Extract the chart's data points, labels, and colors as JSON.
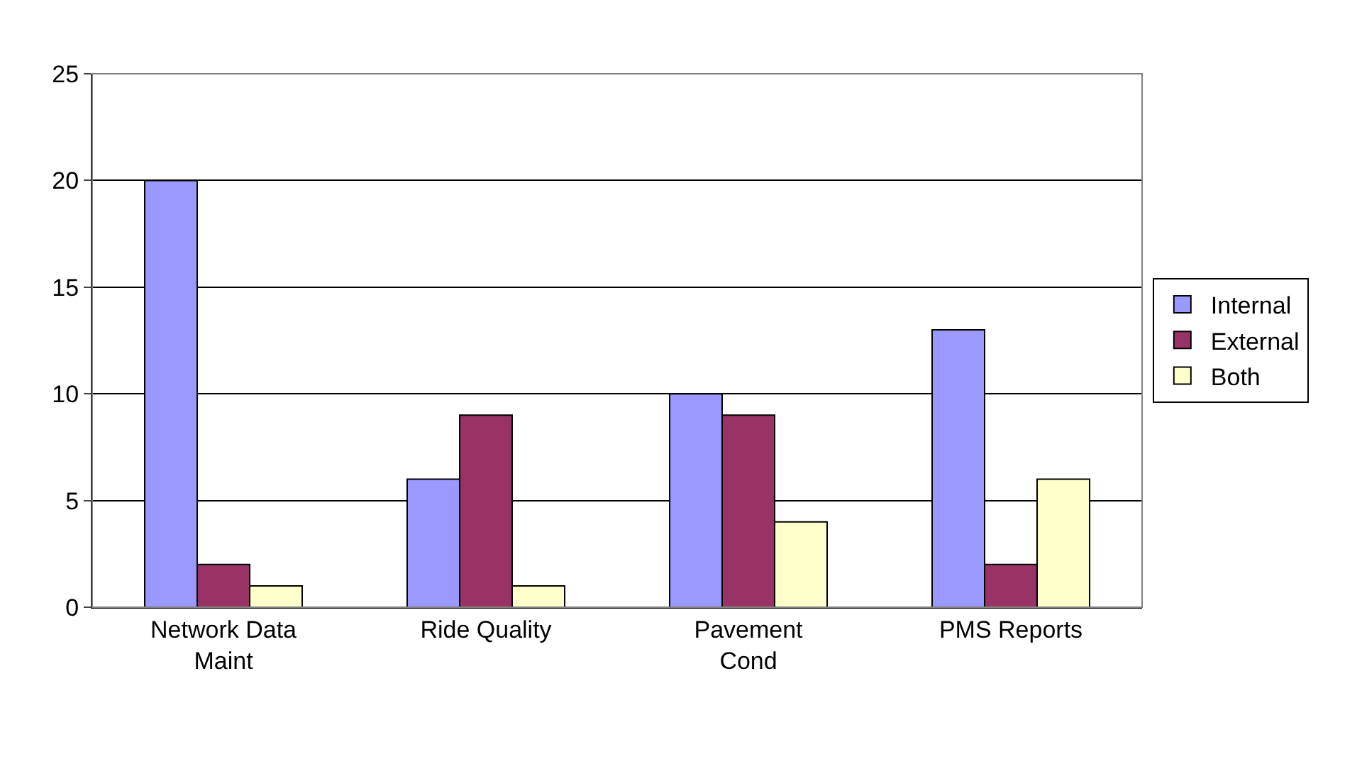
{
  "chart_data": {
    "type": "bar",
    "categories": [
      "Network Data Maint",
      "Ride Quality",
      "Pavement Cond",
      "PMS Reports"
    ],
    "series": [
      {
        "name": "Internal",
        "color": "#9999ff",
        "values": [
          20,
          6,
          10,
          13
        ]
      },
      {
        "name": "External",
        "color": "#993366",
        "values": [
          2,
          9,
          9,
          2
        ]
      },
      {
        "name": "Both",
        "color": "#ffffcc",
        "values": [
          1,
          1,
          4,
          6
        ]
      }
    ],
    "ylim": [
      0,
      25
    ],
    "yticks": [
      0,
      5,
      10,
      15,
      20,
      25
    ],
    "grid": "y",
    "legend": "right"
  }
}
